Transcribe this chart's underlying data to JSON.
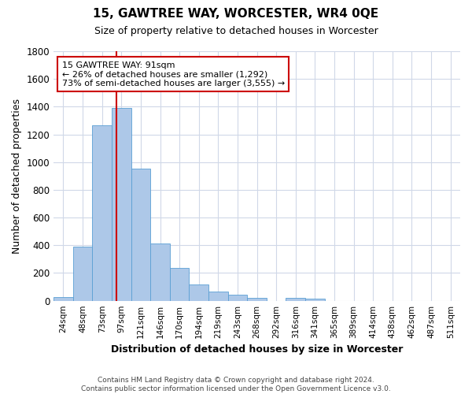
{
  "title": "15, GAWTREE WAY, WORCESTER, WR4 0QE",
  "subtitle": "Size of property relative to detached houses in Worcester",
  "xlabel": "Distribution of detached houses by size in Worcester",
  "ylabel": "Number of detached properties",
  "footer_line1": "Contains HM Land Registry data © Crown copyright and database right 2024.",
  "footer_line2": "Contains public sector information licensed under the Open Government Licence v3.0.",
  "bin_labels": [
    "24sqm",
    "48sqm",
    "73sqm",
    "97sqm",
    "121sqm",
    "146sqm",
    "170sqm",
    "194sqm",
    "219sqm",
    "243sqm",
    "268sqm",
    "292sqm",
    "316sqm",
    "341sqm",
    "365sqm",
    "389sqm",
    "414sqm",
    "438sqm",
    "462sqm",
    "487sqm",
    "511sqm"
  ],
  "bar_values": [
    25,
    390,
    1265,
    1390,
    955,
    415,
    235,
    115,
    65,
    45,
    20,
    0,
    20,
    15,
    0,
    0,
    0,
    0,
    0,
    0,
    0
  ],
  "bar_color": "#adc8e8",
  "bar_edge_color": "#5a9fd4",
  "grid_color": "#d0d8e8",
  "vline_color": "#cc0000",
  "annotation_text": "15 GAWTREE WAY: 91sqm\n← 26% of detached houses are smaller (1,292)\n73% of semi-detached houses are larger (3,555) →",
  "annotation_box_color": "#cc0000",
  "ylim": [
    0,
    1800
  ],
  "yticks": [
    0,
    200,
    400,
    600,
    800,
    1000,
    1200,
    1400,
    1600,
    1800
  ],
  "background_color": "#ffffff",
  "vline_x_index": 2.75
}
